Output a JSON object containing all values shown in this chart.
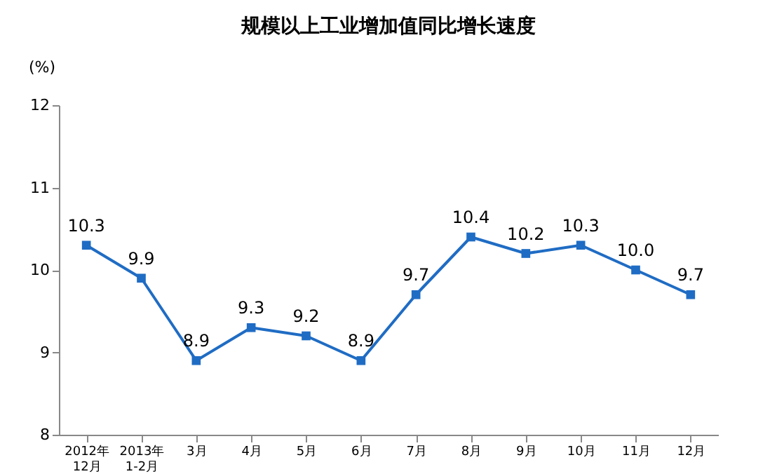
{
  "chart_data": {
    "type": "line",
    "title": "规模以上工业增加值同比增长速度",
    "ylabel": "(%)",
    "categories": [
      "2012年\n12月",
      "2013年\n1-2月",
      "3月",
      "4月",
      "5月",
      "6月",
      "7月",
      "8月",
      "9月",
      "10月",
      "11月",
      "12月"
    ],
    "series": [
      {
        "color": "#1f6cc4",
        "values": [
          10.3,
          9.9,
          8.9,
          9.3,
          9.2,
          8.9,
          9.7,
          10.4,
          10.2,
          10.3,
          10.0,
          9.7
        ]
      }
    ],
    "value_labels": [
      "10.3",
      "9.9",
      "8.9",
      "9.3",
      "9.2",
      "8.9",
      "9.7",
      "10.4",
      "10.2",
      "10.3",
      "10.0",
      "9.7"
    ],
    "ylim": [
      8,
      12
    ],
    "yticks": [
      8,
      9,
      10,
      11,
      12
    ],
    "grid": false,
    "marker": "square",
    "line_style": "solid"
  }
}
